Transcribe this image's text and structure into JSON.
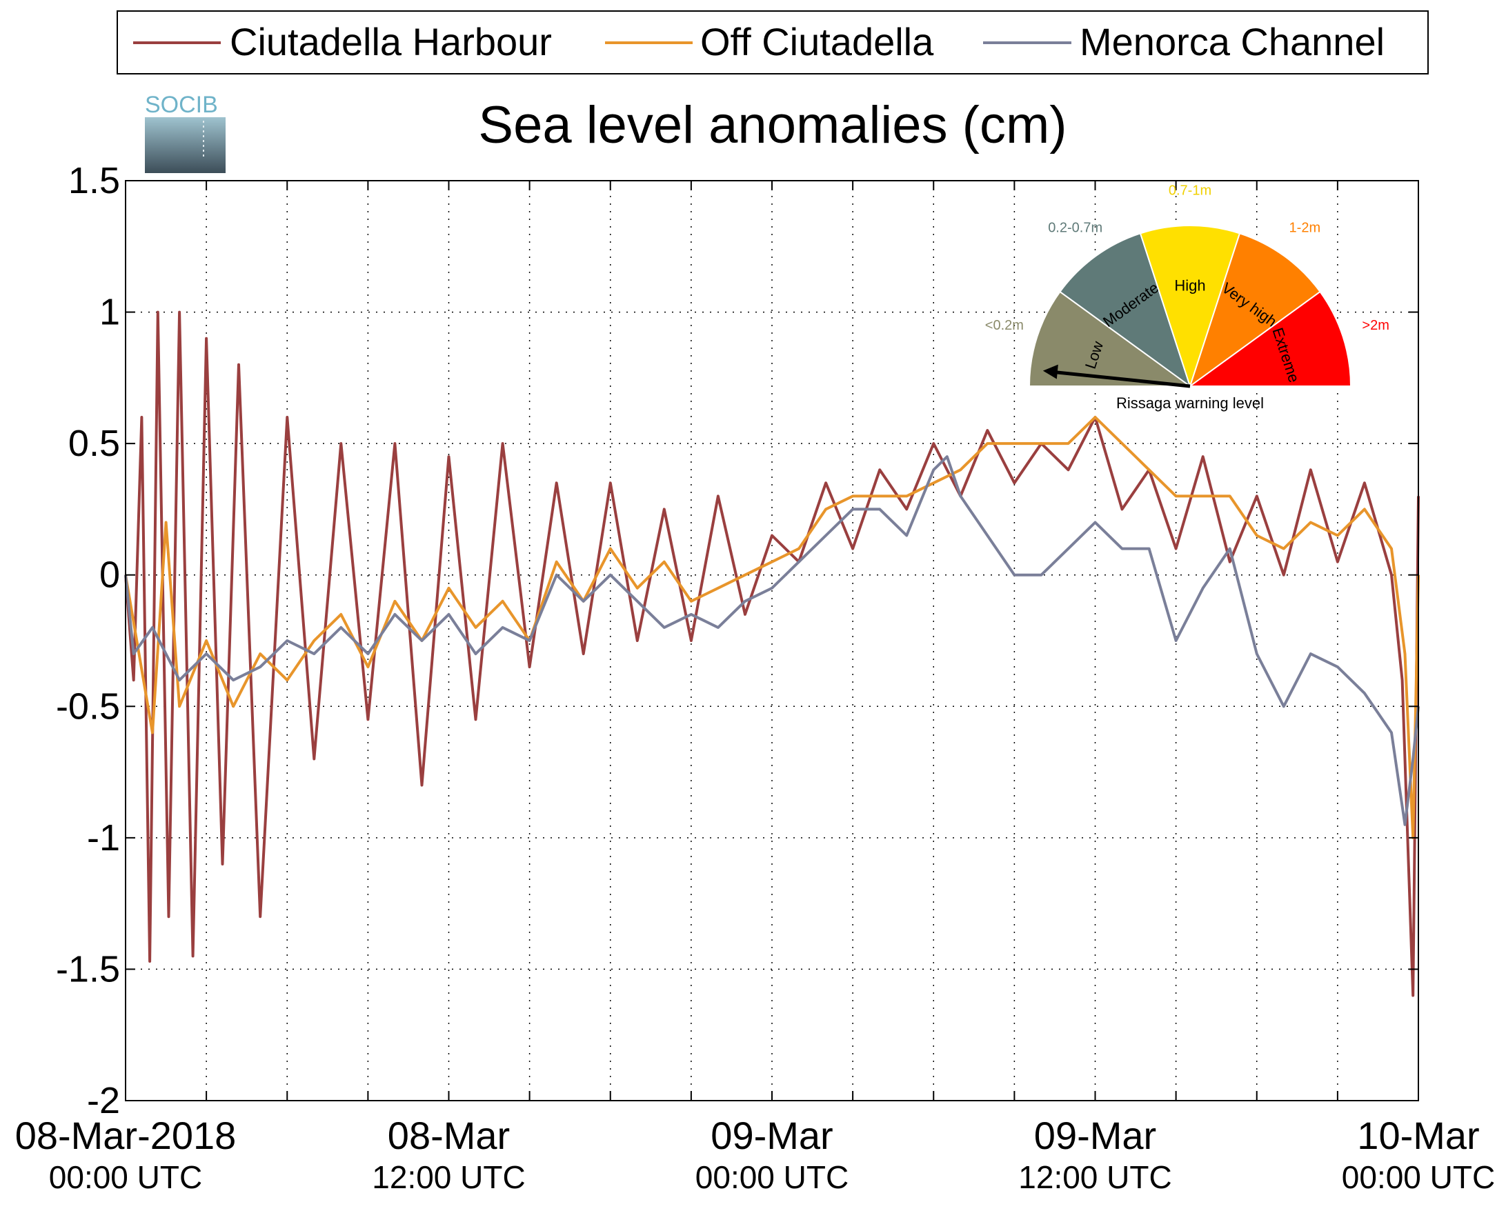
{
  "chart_data": {
    "type": "line",
    "title": "Sea level anomalies (cm)",
    "xlabel": "",
    "ylabel": "",
    "ylim": [
      -2,
      1.5
    ],
    "yticks": [
      -2,
      -1.5,
      -1,
      -0.5,
      0,
      0.5,
      1,
      1.5
    ],
    "xlim_hours": [
      0,
      48
    ],
    "x_unit": "hours since 08-Mar-2018 00:00 UTC",
    "x_ticks": [
      {
        "hours": 0,
        "line1": "08-Mar-2018",
        "line2": "00:00 UTC"
      },
      {
        "hours": 12,
        "line1": "08-Mar",
        "line2": "12:00 UTC"
      },
      {
        "hours": 24,
        "line1": "09-Mar",
        "line2": "00:00 UTC"
      },
      {
        "hours": 36,
        "line1": "09-Mar",
        "line2": "12:00 UTC"
      },
      {
        "hours": 48,
        "line1": "10-Mar",
        "line2": "00:00 UTC"
      }
    ],
    "grid": true,
    "legend_position": "top",
    "series": [
      {
        "name": "Ciutadella Harbour",
        "color": "#9a3f3f",
        "x": [
          0,
          0.3,
          0.6,
          0.9,
          1.2,
          1.6,
          2,
          2.5,
          3,
          3.6,
          4.2,
          5,
          6,
          7,
          8,
          9,
          10,
          11,
          12,
          13,
          14,
          15,
          16,
          17,
          18,
          19,
          20,
          21,
          22,
          23,
          24,
          25,
          26,
          27,
          28,
          29,
          30,
          31,
          32,
          33,
          34,
          35,
          36,
          37,
          38,
          39,
          40,
          41,
          42,
          43,
          44,
          45,
          46,
          47,
          47.4,
          47.8,
          48
        ],
        "values": [
          0,
          -0.4,
          0.6,
          -1.47,
          1.0,
          -1.3,
          1.0,
          -1.45,
          0.9,
          -1.1,
          0.8,
          -1.3,
          0.6,
          -0.7,
          0.5,
          -0.55,
          0.5,
          -0.8,
          0.45,
          -0.55,
          0.5,
          -0.35,
          0.35,
          -0.3,
          0.35,
          -0.25,
          0.25,
          -0.25,
          0.3,
          -0.15,
          0.15,
          0.05,
          0.35,
          0.1,
          0.4,
          0.25,
          0.5,
          0.3,
          0.55,
          0.35,
          0.5,
          0.4,
          0.6,
          0.25,
          0.4,
          0.1,
          0.45,
          0.05,
          0.3,
          0.0,
          0.4,
          0.05,
          0.35,
          0.0,
          -0.4,
          -1.6,
          0.3
        ]
      },
      {
        "name": "Off Ciutadella",
        "color": "#e8952b",
        "x": [
          0,
          0.5,
          1,
          1.5,
          2,
          3,
          4,
          5,
          6,
          7,
          8,
          9,
          10,
          11,
          12,
          13,
          14,
          15,
          16,
          17,
          18,
          19,
          20,
          21,
          22,
          23,
          24,
          25,
          26,
          27,
          28,
          29,
          30,
          31,
          32,
          33,
          34,
          35,
          36,
          37,
          38,
          39,
          40,
          41,
          42,
          43,
          44,
          45,
          46,
          47,
          47.5,
          47.8,
          48
        ],
        "values": [
          0,
          -0.3,
          -0.6,
          0.2,
          -0.5,
          -0.25,
          -0.5,
          -0.3,
          -0.4,
          -0.25,
          -0.15,
          -0.35,
          -0.1,
          -0.25,
          -0.05,
          -0.2,
          -0.1,
          -0.25,
          0.05,
          -0.1,
          0.1,
          -0.05,
          0.05,
          -0.1,
          -0.05,
          0.0,
          0.05,
          0.1,
          0.25,
          0.3,
          0.3,
          0.3,
          0.35,
          0.4,
          0.5,
          0.5,
          0.5,
          0.5,
          0.6,
          0.5,
          0.4,
          0.3,
          0.3,
          0.3,
          0.15,
          0.1,
          0.2,
          0.15,
          0.25,
          0.1,
          -0.3,
          -1.0,
          0.0
        ]
      },
      {
        "name": "Menorca Channel",
        "color": "#7a7f99",
        "x": [
          0,
          0.3,
          1,
          2,
          3,
          4,
          5,
          6,
          7,
          8,
          9,
          10,
          11,
          12,
          13,
          14,
          15,
          16,
          17,
          18,
          19,
          20,
          21,
          22,
          23,
          24,
          25,
          26,
          27,
          28,
          29,
          30,
          30.5,
          31,
          32,
          33,
          34,
          35,
          36,
          37,
          38,
          39,
          40,
          41,
          42,
          43,
          44,
          45,
          46,
          47,
          47.5,
          47.8,
          48
        ],
        "values": [
          0,
          -0.3,
          -0.2,
          -0.4,
          -0.3,
          -0.4,
          -0.35,
          -0.25,
          -0.3,
          -0.2,
          -0.3,
          -0.15,
          -0.25,
          -0.15,
          -0.3,
          -0.2,
          -0.25,
          0.0,
          -0.1,
          0.0,
          -0.1,
          -0.2,
          -0.15,
          -0.2,
          -0.1,
          -0.05,
          0.05,
          0.15,
          0.25,
          0.25,
          0.15,
          0.4,
          0.45,
          0.3,
          0.15,
          0.0,
          0.0,
          0.1,
          0.2,
          0.1,
          0.1,
          -0.25,
          -0.05,
          0.1,
          -0.3,
          -0.5,
          -0.3,
          -0.35,
          -0.45,
          -0.6,
          -0.95,
          -0.7,
          -0.5
        ]
      }
    ]
  },
  "warning_gauge": {
    "title": "Rissaga warning level",
    "segments": [
      {
        "name": "Low",
        "range": "<0.2m",
        "color": "#8a8a6a"
      },
      {
        "name": "Moderate",
        "range": "0.2-0.7m",
        "color": "#5f7a78"
      },
      {
        "name": "High",
        "range": "0.7-1m",
        "color": "#ffe000"
      },
      {
        "name": "Very high",
        "range": "1-2m",
        "color": "#ff8000"
      },
      {
        "name": "Extreme",
        "range": ">2m",
        "color": "#ff0000"
      }
    ],
    "range_label_colors": [
      "#8a8a6a",
      "#5f7a78",
      "#f0d000",
      "#ff8000",
      "#ff0000"
    ],
    "pointer_level": "Low"
  },
  "logo": {
    "text": "SOCIB"
  }
}
